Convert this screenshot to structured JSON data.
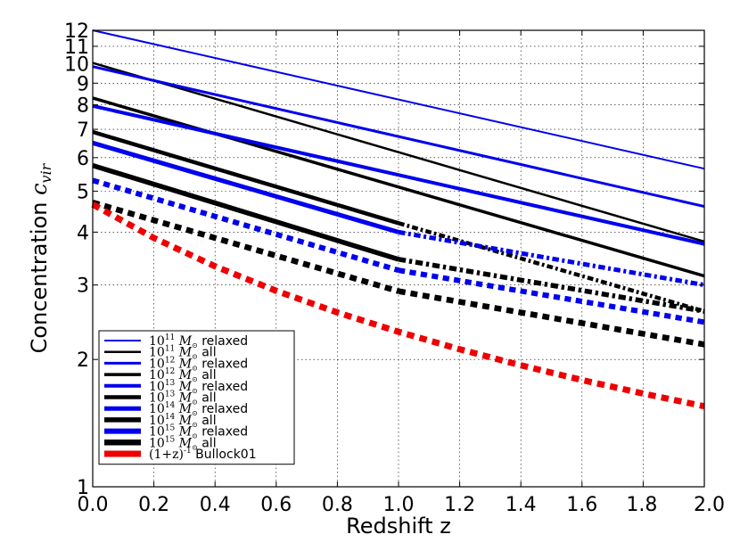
{
  "chart_data": {
    "type": "line",
    "title": "",
    "xlabel": "Redshift z",
    "ylabel_prefix": "Concentration ",
    "ylabel_symbol": "c",
    "ylabel_subscript": "vir",
    "xlim": [
      0.0,
      2.0
    ],
    "ylim": [
      1,
      12
    ],
    "yscale": "log",
    "grid": true,
    "x_ticks": [
      "0.0",
      "0.2",
      "0.4",
      "0.6",
      "0.8",
      "1.0",
      "1.2",
      "1.4",
      "1.6",
      "1.8",
      "2.0"
    ],
    "y_ticks": [
      {
        "value": 1,
        "label": "1"
      },
      {
        "value": 2,
        "label": "2"
      },
      {
        "value": 3,
        "label": "3"
      },
      {
        "value": 4,
        "label": "4"
      },
      {
        "value": 5,
        "label": "5"
      },
      {
        "value": 6,
        "label": "6"
      },
      {
        "value": 7,
        "label": "7"
      },
      {
        "value": 8,
        "label": "8"
      },
      {
        "value": 9,
        "label": "9"
      },
      {
        "value": 10,
        "label": "10"
      },
      {
        "value": 11,
        "label": "11"
      },
      {
        "value": 12,
        "label": "12"
      }
    ],
    "legend_position": "lower-left",
    "series": [
      {
        "name": "10^11 M_sun relaxed",
        "legend_mass": "10",
        "legend_exp": "11",
        "legend_tag": "relaxed",
        "color": "#0000ee",
        "line_width": 2,
        "style": "solid",
        "segments": [
          {
            "style": "solid",
            "points": [
              [
                0.0,
                12.0
              ],
              [
                2.0,
                5.65
              ]
            ]
          }
        ]
      },
      {
        "name": "10^11 M_sun all",
        "legend_mass": "10",
        "legend_exp": "11",
        "legend_tag": "all",
        "color": "#000000",
        "line_width": 2.5,
        "style": "solid",
        "segments": [
          {
            "style": "solid",
            "points": [
              [
                0.0,
                10.05
              ],
              [
                2.0,
                3.8
              ]
            ]
          }
        ]
      },
      {
        "name": "10^12 M_sun relaxed",
        "legend_mass": "10",
        "legend_exp": "12",
        "legend_tag": "relaxed",
        "color": "#0000ee",
        "line_width": 3,
        "style": "solid",
        "segments": [
          {
            "style": "solid",
            "points": [
              [
                0.0,
                9.85
              ],
              [
                2.0,
                4.6
              ]
            ]
          }
        ]
      },
      {
        "name": "10^12 M_sun all",
        "legend_mass": "10",
        "legend_exp": "12",
        "legend_tag": "all",
        "color": "#000000",
        "line_width": 3.5,
        "style": "solid",
        "segments": [
          {
            "style": "solid",
            "points": [
              [
                0.0,
                8.3
              ],
              [
                2.0,
                3.15
              ]
            ]
          }
        ]
      },
      {
        "name": "10^13 M_sun relaxed",
        "legend_mass": "10",
        "legend_exp": "13",
        "legend_tag": "relaxed",
        "color": "#0000ee",
        "line_width": 4,
        "style": "solid",
        "segments": [
          {
            "style": "solid",
            "points": [
              [
                0.0,
                7.95
              ],
              [
                2.0,
                3.75
              ]
            ]
          }
        ]
      },
      {
        "name": "10^13 M_sun all",
        "legend_mass": "10",
        "legend_exp": "13",
        "legend_tag": "all",
        "color": "#000000",
        "line_width": 4.5,
        "style": "solid",
        "segments": [
          {
            "style": "solid",
            "points": [
              [
                0.0,
                6.9
              ],
              [
                1.0,
                4.2
              ]
            ]
          },
          {
            "style": "dashdot",
            "points": [
              [
                1.0,
                4.2
              ],
              [
                2.0,
                2.6
              ]
            ]
          }
        ]
      },
      {
        "name": "10^14 M_sun relaxed",
        "legend_mass": "10",
        "legend_exp": "14",
        "legend_tag": "relaxed",
        "color": "#0000ee",
        "line_width": 5,
        "style": "solid",
        "segments": [
          {
            "style": "solid",
            "points": [
              [
                0.0,
                6.5
              ],
              [
                1.0,
                4.0
              ]
            ]
          },
          {
            "style": "dashdot",
            "points": [
              [
                1.0,
                4.0
              ],
              [
                2.0,
                3.0
              ]
            ]
          }
        ]
      },
      {
        "name": "10^14 M_sun all",
        "legend_mass": "10",
        "legend_exp": "14",
        "legend_tag": "all",
        "color": "#000000",
        "line_width": 5.5,
        "style": "solid",
        "segments": [
          {
            "style": "solid",
            "points": [
              [
                0.0,
                5.75
              ],
              [
                1.0,
                3.45
              ]
            ]
          },
          {
            "style": "dashdot",
            "points": [
              [
                1.0,
                3.45
              ],
              [
                2.0,
                2.6
              ]
            ]
          }
        ]
      },
      {
        "name": "10^15 M_sun relaxed",
        "legend_mass": "10",
        "legend_exp": "15",
        "legend_tag": "relaxed",
        "color": "#0000ee",
        "line_width": 6,
        "style": "dashed",
        "segments": [
          {
            "style": "dashed",
            "points": [
              [
                0.0,
                5.3
              ],
              [
                1.0,
                3.25
              ]
            ]
          },
          {
            "style": "dashed",
            "points": [
              [
                1.0,
                3.25
              ],
              [
                2.0,
                2.45
              ]
            ]
          }
        ]
      },
      {
        "name": "10^15 M_sun all",
        "legend_mass": "10",
        "legend_exp": "15",
        "legend_tag": "all",
        "color": "#000000",
        "line_width": 6.5,
        "style": "dashed",
        "segments": [
          {
            "style": "dashed",
            "points": [
              [
                0.0,
                4.7
              ],
              [
                1.0,
                2.9
              ]
            ]
          },
          {
            "style": "dashed",
            "points": [
              [
                1.0,
                2.9
              ],
              [
                2.0,
                2.17
              ]
            ]
          }
        ]
      },
      {
        "name": "(1+z)^-1 Bullock01",
        "legend_mass": "(1+z)",
        "legend_exp": "-1",
        "legend_tag": "Bullock01",
        "color": "#ee0000",
        "line_width": 7,
        "style": "dashed",
        "segments": [
          {
            "style": "dashed",
            "points": [
              [
                0.0,
                4.65
              ],
              [
                0.2,
                3.875
              ],
              [
                0.4,
                3.321
              ],
              [
                0.6,
                2.906
              ],
              [
                0.8,
                2.583
              ],
              [
                1.0,
                2.325
              ],
              [
                1.2,
                2.114
              ],
              [
                1.4,
                1.9375
              ],
              [
                1.6,
                1.788
              ],
              [
                1.8,
                1.661
              ],
              [
                2.0,
                1.55
              ]
            ]
          }
        ]
      }
    ]
  }
}
